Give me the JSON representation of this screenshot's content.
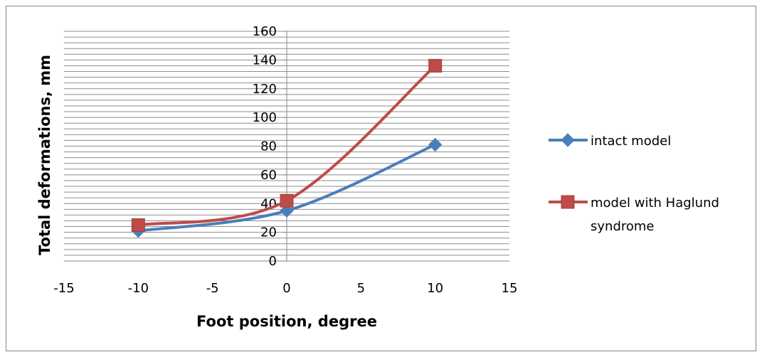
{
  "chart_data": {
    "type": "scatter",
    "title": "",
    "xlabel": "Foot position, degree",
    "ylabel": "Total deformations, mm",
    "xlim": [
      -15,
      15
    ],
    "ylim": [
      0,
      160
    ],
    "x_ticks": [
      -15,
      -10,
      -5,
      0,
      5,
      10,
      15
    ],
    "y_ticks": [
      0,
      20,
      40,
      60,
      80,
      100,
      120,
      140,
      160
    ],
    "y_minor_step": 4,
    "grid": "horizontal major and minor",
    "smoothed_lines": true,
    "legend_position": "right",
    "series": [
      {
        "name": "intact model",
        "color": "#4a7ebb",
        "marker": "diamond",
        "x": [
          -10,
          0,
          10
        ],
        "y": [
          21,
          35,
          81
        ]
      },
      {
        "name": "model with Haglund syndrome",
        "color": "#be4b48",
        "marker": "square",
        "x": [
          -10,
          0,
          10
        ],
        "y": [
          25,
          42,
          136
        ]
      }
    ]
  }
}
